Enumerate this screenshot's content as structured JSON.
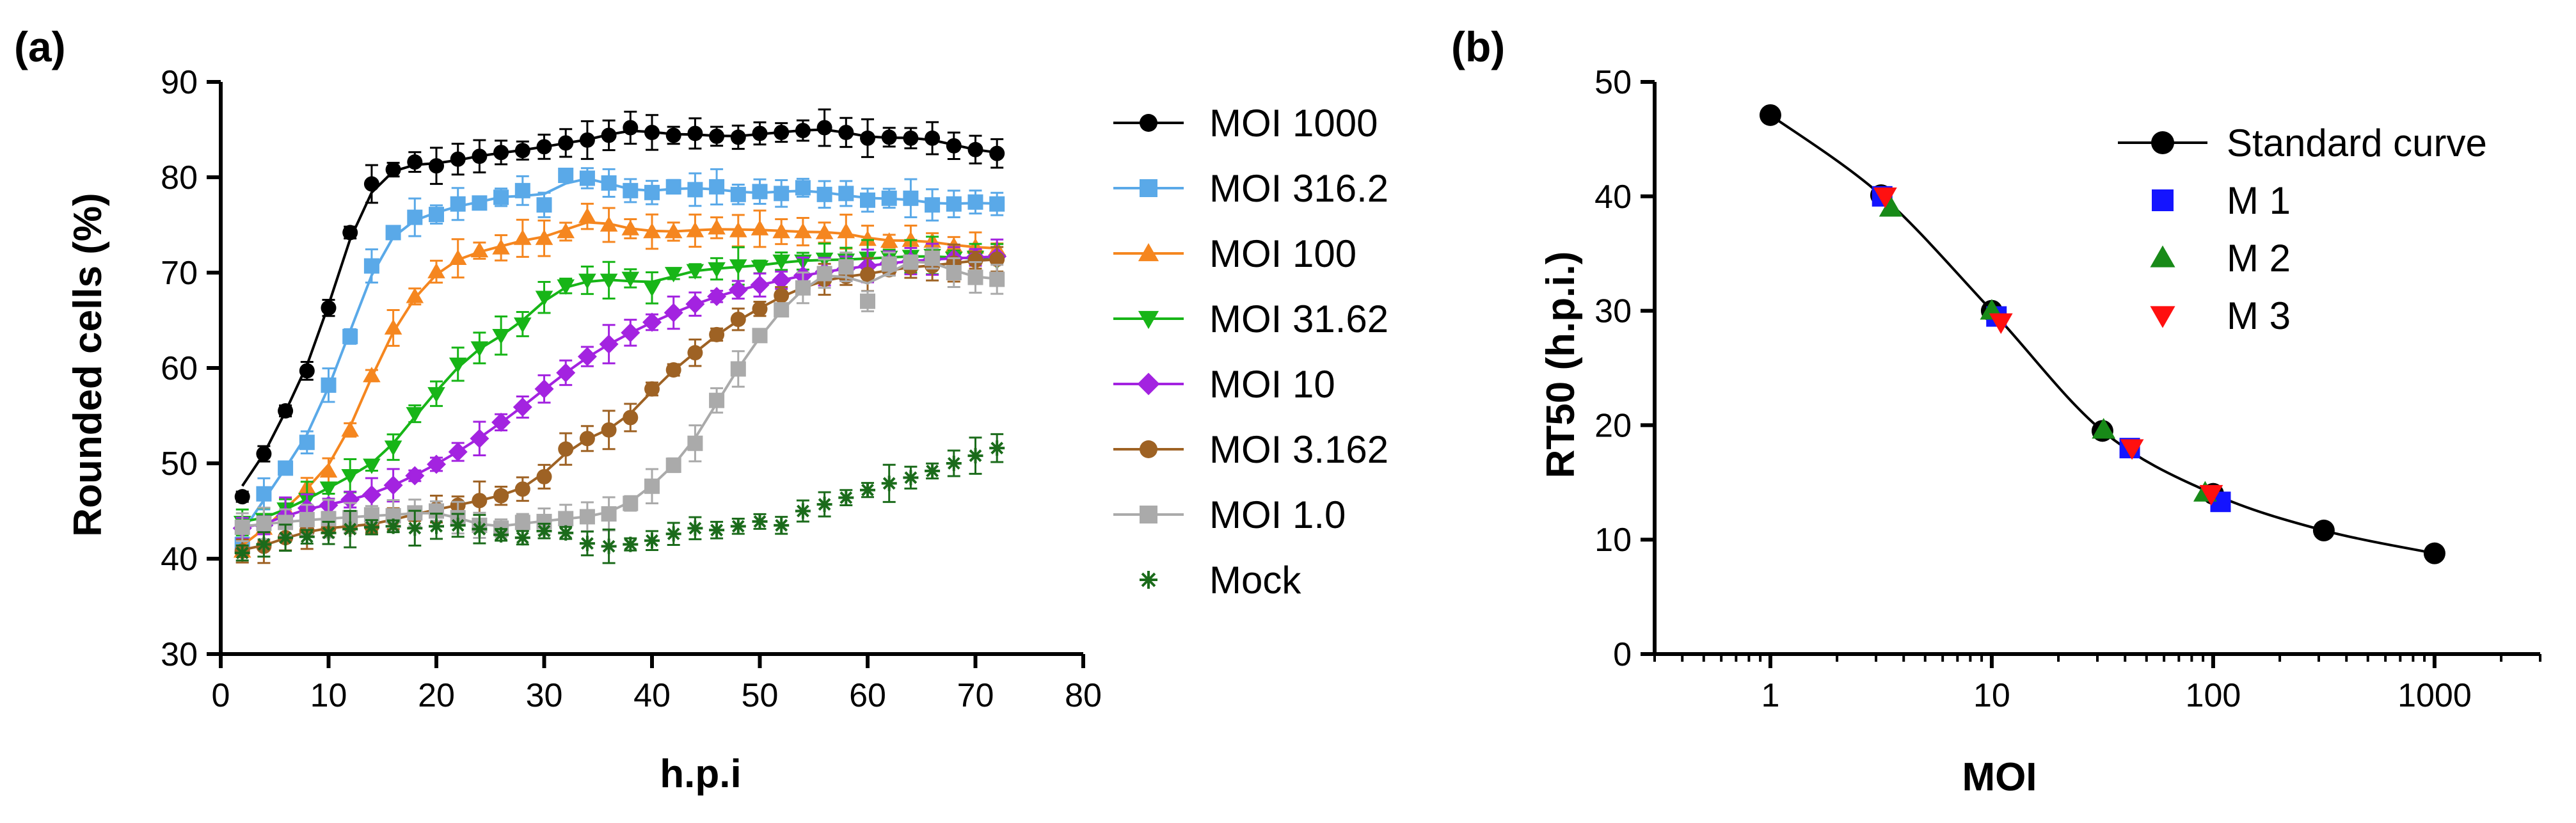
{
  "chart_data": [
    {
      "type": "line",
      "panel_label": "(a)",
      "xlabel": "h.p.i",
      "ylabel": "Rounded cells (%)",
      "xlim": [
        0,
        80
      ],
      "ylim": [
        30,
        90
      ],
      "xticks": [
        "0",
        "10",
        "20",
        "30",
        "40",
        "50",
        "60",
        "70",
        "80"
      ],
      "yticks": [
        "30",
        "40",
        "50",
        "60",
        "70",
        "80",
        "90"
      ],
      "x": [
        2,
        4,
        6,
        8,
        10,
        12,
        14,
        16,
        18,
        20,
        22,
        24,
        26,
        28,
        30,
        32,
        34,
        36,
        38,
        40,
        42,
        44,
        46,
        48,
        50,
        52,
        54,
        56,
        58,
        60,
        62,
        64,
        66,
        68,
        70,
        72
      ],
      "series": [
        {
          "name": "MOI 1000",
          "color": "#000000",
          "marker": "circle",
          "fit": true,
          "values": [
            46.5,
            51,
            55.5,
            59.7,
            66.3,
            74.2,
            79.3,
            80.8,
            81.6,
            81.2,
            81.9,
            82.2,
            82.6,
            82.8,
            83.2,
            83.6,
            83.9,
            84.4,
            85.2,
            84.7,
            84.4,
            84.6,
            84.3,
            84.2,
            84.6,
            84.7,
            84.9,
            85.2,
            84.7,
            84.1,
            84.2,
            84.1,
            84.1,
            83.3,
            82.9,
            82.5
          ]
        },
        {
          "name": "MOI 316.2",
          "color": "#5aa9e8",
          "marker": "square",
          "fit": true,
          "values": [
            41.5,
            46.8,
            49.5,
            52.2,
            58.2,
            63.3,
            70.7,
            74.2,
            75.8,
            76.1,
            77.2,
            77.3,
            77.9,
            78.6,
            77.1,
            80.2,
            79.9,
            79.4,
            78.6,
            78.4,
            79.0,
            78.7,
            79.0,
            78.2,
            78.5,
            78.3,
            78.9,
            78.2,
            78.3,
            77.6,
            77.8,
            77.8,
            77.1,
            77.2,
            77.4,
            77.2
          ]
        },
        {
          "name": "MOI 100",
          "color": "#f5861f",
          "marker": "triangle-up",
          "fit": true,
          "values": [
            40.8,
            43.2,
            45.2,
            47.5,
            49.2,
            53.5,
            59.2,
            64.2,
            67.5,
            70.1,
            71.5,
            72.3,
            72.6,
            73.6,
            73.6,
            74.3,
            75.9,
            75.0,
            74.6,
            74.3,
            74.3,
            74.4,
            74.7,
            74.4,
            74.6,
            74.3,
            74.3,
            74.2,
            74.3,
            73.5,
            73.3,
            73.4,
            73.3,
            72.8,
            72.7,
            72.5
          ]
        },
        {
          "name": "MOI 31.62",
          "color": "#17b517",
          "marker": "triangle-down",
          "fit": true,
          "values": [
            43.8,
            44.1,
            45.2,
            46.2,
            47.4,
            48.7,
            49.8,
            51.7,
            55.2,
            57.3,
            60.4,
            62.1,
            63.4,
            64.6,
            67.4,
            68.6,
            69.2,
            69.2,
            69.4,
            68.4,
            69.9,
            70.2,
            70.4,
            70.7,
            70.6,
            71.2,
            71.2,
            71.4,
            71.3,
            71.5,
            71.6,
            71.7,
            71.8,
            71.5,
            71.6,
            71.2
          ]
        },
        {
          "name": "MOI 10",
          "color": "#a323e0",
          "marker": "diamond",
          "fit": true,
          "values": [
            43.2,
            43.5,
            44.5,
            45.3,
            45.6,
            46.2,
            46.7,
            47.7,
            48.7,
            49.9,
            51.2,
            52.6,
            54.3,
            55.9,
            57.8,
            59.5,
            61.2,
            62.5,
            63.7,
            64.8,
            65.8,
            66.7,
            67.5,
            68.2,
            68.7,
            69.2,
            69.7,
            70.1,
            70.4,
            70.7,
            71.0,
            71.2,
            71.4,
            71.5,
            71.6,
            71.7
          ]
        },
        {
          "name": "MOI 3.162",
          "color": "#9e6224",
          "marker": "circle",
          "fit": true,
          "values": [
            40.8,
            41.3,
            42.2,
            42.9,
            43.2,
            43.5,
            43.4,
            44.2,
            44.6,
            45.2,
            45.6,
            46.1,
            46.6,
            47.3,
            48.6,
            51.5,
            52.6,
            53.5,
            54.8,
            57.8,
            59.8,
            61.6,
            63.5,
            65.1,
            66.2,
            67.6,
            68.4,
            69.3,
            69.6,
            69.8,
            70.3,
            70.6,
            70.7,
            71.0,
            71.3,
            71.4
          ]
        },
        {
          "name": "MOI 1.0",
          "color": "#aaaaaa",
          "marker": "square",
          "fit": true,
          "values": [
            43.3,
            43.7,
            43.8,
            44.1,
            44.2,
            44.3,
            44.6,
            44.5,
            44.8,
            45.0,
            44.3,
            43.5,
            43.2,
            43.8,
            43.9,
            44.2,
            44.4,
            44.7,
            45.8,
            47.6,
            49.8,
            52.1,
            56.6,
            59.9,
            63.4,
            66.1,
            68.4,
            69.9,
            70.6,
            67.0,
            70.9,
            71.1,
            71.5,
            70.0,
            69.5,
            69.3
          ]
        },
        {
          "name": "Mock",
          "color": "#1b6b1b",
          "marker": "asterisk",
          "fit": false,
          "values": [
            40.6,
            41.5,
            42.2,
            42.3,
            42.7,
            43.1,
            43.3,
            43.4,
            43.2,
            43.4,
            43.5,
            43.1,
            42.5,
            42.2,
            42.9,
            42.7,
            41.6,
            41.3,
            41.5,
            41.9,
            42.6,
            43.2,
            43.0,
            43.4,
            43.9,
            43.5,
            45.0,
            45.7,
            46.4,
            47.2,
            47.9,
            48.5,
            49.2,
            50.0,
            50.8,
            51.6
          ]
        }
      ],
      "legend": "right"
    },
    {
      "type": "scatter",
      "panel_label": "(b)",
      "xlabel": "MOI",
      "ylabel": "RT50 (h.p.i.)",
      "xscale": "log",
      "xlim": [
        0.3,
        3000
      ],
      "ylim": [
        0,
        50
      ],
      "xticks": [
        "1",
        "10",
        "100",
        "1000"
      ],
      "yticks": [
        "0",
        "10",
        "20",
        "30",
        "40",
        "50"
      ],
      "series": [
        {
          "name": "Standard curve",
          "color": "#000000",
          "marker": "circle",
          "fit": true,
          "x": [
            1,
            3.162,
            10,
            31.62,
            100,
            316.2,
            1000
          ],
          "y": [
            47.1,
            40.1,
            30.0,
            19.5,
            14.0,
            10.8,
            8.8
          ]
        },
        {
          "name": "M 1",
          "color": "#1414ff",
          "marker": "square",
          "fit": false,
          "x": [
            3.2,
            10.5,
            42,
            108
          ],
          "y": [
            40.0,
            29.5,
            18.0,
            13.3
          ]
        },
        {
          "name": "M 2",
          "color": "#188a18",
          "marker": "triangle-up",
          "fit": false,
          "x": [
            3.5,
            10.0,
            32,
            92
          ],
          "y": [
            39.0,
            30.0,
            19.6,
            14.1
          ]
        },
        {
          "name": "M 3",
          "color": "#ff1010",
          "marker": "triangle-down",
          "fit": false,
          "x": [
            3.3,
            11.0,
            43,
            98
          ],
          "y": [
            40.0,
            29.0,
            18.0,
            14.0
          ]
        }
      ],
      "legend": "top-right"
    }
  ]
}
